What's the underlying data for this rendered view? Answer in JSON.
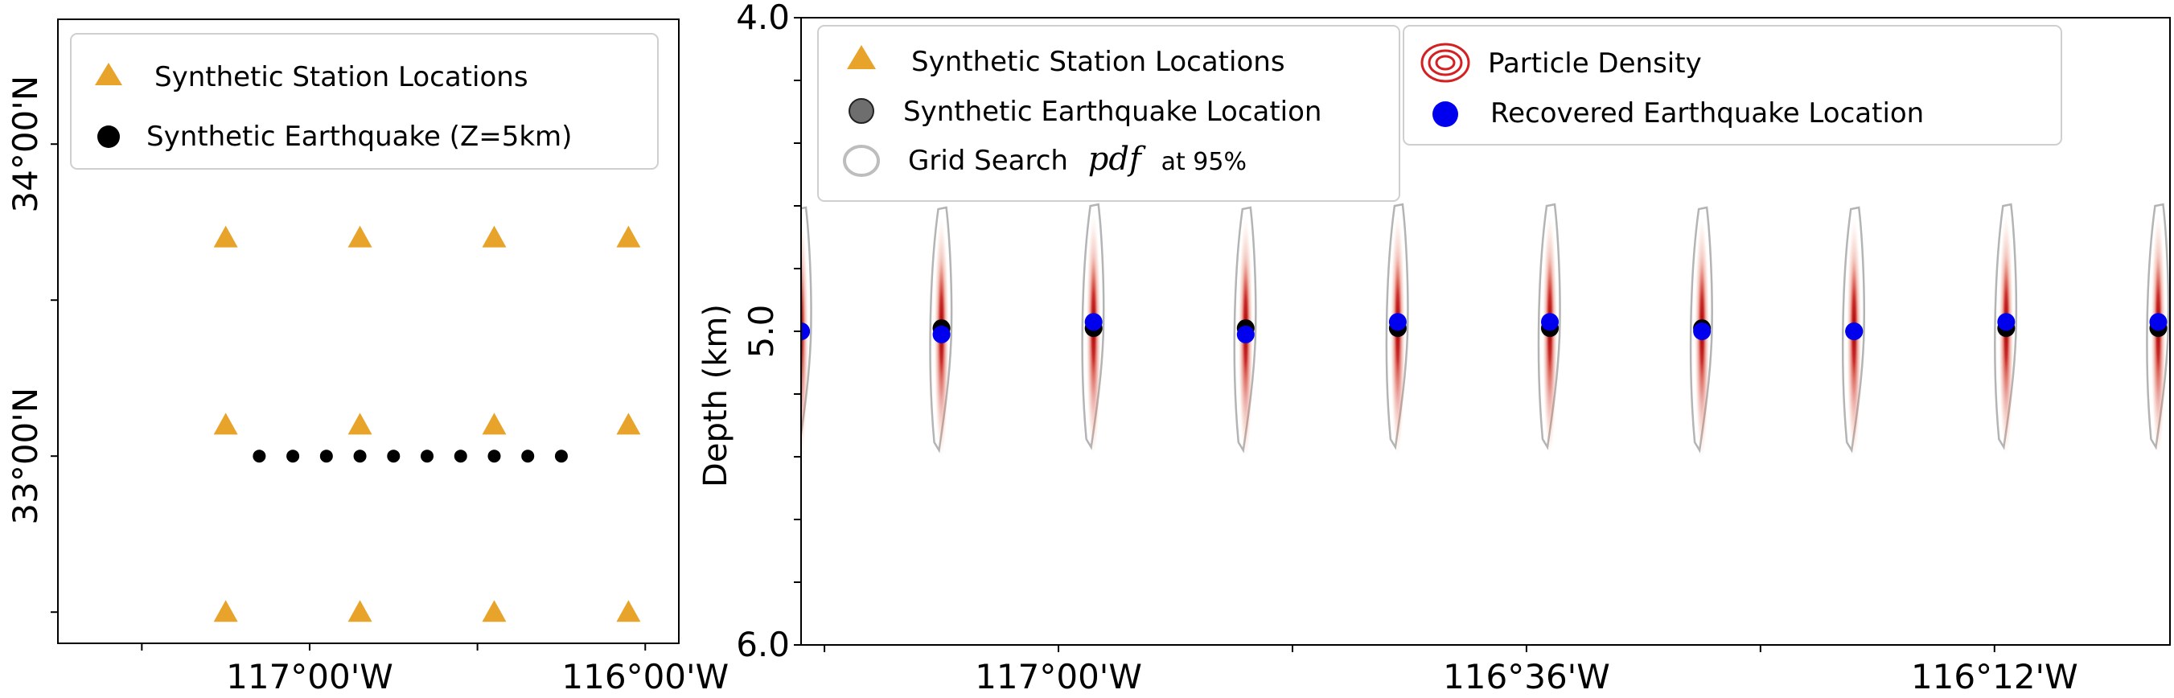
{
  "colors": {
    "station": "#E8A32A",
    "synthetic_eq": "#000000",
    "recovered_eq": "#0000EE",
    "density": "#B00000",
    "grid_pdf": "#B4B4B4",
    "frame": "#000000"
  },
  "chart_data": [
    {
      "type": "scatter",
      "panel": "map",
      "title": "",
      "xlabel": "",
      "ylabel": "",
      "x_ticks": [
        {
          "value": -117.0,
          "label": "117°00'W"
        },
        {
          "value": -116.0,
          "label": "116°00'W"
        }
      ],
      "y_ticks": [
        {
          "value": 33.0,
          "label": "33°00'N"
        },
        {
          "value": 34.0,
          "label": "34°00'N"
        }
      ],
      "xlim": [
        -117.75,
        -115.9
      ],
      "ylim": [
        32.4,
        34.4
      ],
      "series": [
        {
          "name": "Synthetic Station Locations",
          "marker": "triangle",
          "points": [
            {
              "x": -117.25,
              "y": 32.5
            },
            {
              "x": -116.85,
              "y": 32.5
            },
            {
              "x": -116.45,
              "y": 32.5
            },
            {
              "x": -116.05,
              "y": 32.5
            },
            {
              "x": -117.25,
              "y": 33.1
            },
            {
              "x": -116.85,
              "y": 33.1
            },
            {
              "x": -116.45,
              "y": 33.1
            },
            {
              "x": -116.05,
              "y": 33.1
            },
            {
              "x": -117.25,
              "y": 33.7
            },
            {
              "x": -116.85,
              "y": 33.7
            },
            {
              "x": -116.45,
              "y": 33.7
            },
            {
              "x": -116.05,
              "y": 33.7
            }
          ]
        },
        {
          "name": "Synthetic Earthquake (Z=5km)",
          "marker": "circle",
          "points": [
            {
              "x": -117.15,
              "y": 33.0
            },
            {
              "x": -117.05,
              "y": 33.0
            },
            {
              "x": -116.95,
              "y": 33.0
            },
            {
              "x": -116.85,
              "y": 33.0
            },
            {
              "x": -116.75,
              "y": 33.0
            },
            {
              "x": -116.65,
              "y": 33.0
            },
            {
              "x": -116.55,
              "y": 33.0
            },
            {
              "x": -116.45,
              "y": 33.0
            },
            {
              "x": -116.35,
              "y": 33.0
            },
            {
              "x": -116.25,
              "y": 33.0
            }
          ]
        }
      ],
      "legend": {
        "placement": "top"
      }
    },
    {
      "type": "scatter",
      "panel": "depth-section",
      "title": "",
      "xlabel": "",
      "ylabel": "Depth (km)",
      "x_ticks": [
        {
          "value": -117.0,
          "label": "117°00'W"
        },
        {
          "value": -116.6,
          "label": "116°36'W"
        },
        {
          "value": -116.2,
          "label": "116°12'W"
        }
      ],
      "y_ticks": [
        {
          "value": 4.0,
          "label": "4.0"
        },
        {
          "value": 5.0,
          "label": "5.0"
        },
        {
          "value": 6.0,
          "label": "6.0"
        }
      ],
      "xlim": [
        -117.22,
        -116.05
      ],
      "ylim": [
        6.0,
        4.0
      ],
      "y_inverted": true,
      "series": [
        {
          "name": "Synthetic Earthquake Location",
          "marker": "circle",
          "points": [
            {
              "x": -117.22,
              "y": 5.0
            },
            {
              "x": -117.1,
              "y": 4.99
            },
            {
              "x": -116.97,
              "y": 4.99
            },
            {
              "x": -116.84,
              "y": 4.99
            },
            {
              "x": -116.71,
              "y": 4.99
            },
            {
              "x": -116.58,
              "y": 4.99
            },
            {
              "x": -116.45,
              "y": 4.99
            },
            {
              "x": -116.32,
              "y": 5.0
            },
            {
              "x": -116.19,
              "y": 4.99
            },
            {
              "x": -116.06,
              "y": 4.99
            }
          ]
        },
        {
          "name": "Recovered Earthquake Location",
          "marker": "circle",
          "points": [
            {
              "x": -117.22,
              "y": 5.0
            },
            {
              "x": -117.1,
              "y": 5.01
            },
            {
              "x": -116.97,
              "y": 4.97
            },
            {
              "x": -116.84,
              "y": 5.01
            },
            {
              "x": -116.71,
              "y": 4.97
            },
            {
              "x": -116.58,
              "y": 4.97
            },
            {
              "x": -116.45,
              "y": 5.0
            },
            {
              "x": -116.32,
              "y": 5.0
            },
            {
              "x": -116.19,
              "y": 4.97
            },
            {
              "x": -116.06,
              "y": 4.97
            }
          ]
        },
        {
          "name": "Particle Density",
          "marker": "density-ellipse",
          "points": [
            {
              "x": -117.22,
              "y": 5.0
            },
            {
              "x": -117.1,
              "y": 5.0
            },
            {
              "x": -116.97,
              "y": 4.99
            },
            {
              "x": -116.84,
              "y": 5.0
            },
            {
              "x": -116.71,
              "y": 4.99
            },
            {
              "x": -116.58,
              "y": 4.99
            },
            {
              "x": -116.45,
              "y": 5.0
            },
            {
              "x": -116.32,
              "y": 5.0
            },
            {
              "x": -116.19,
              "y": 4.99
            },
            {
              "x": -116.06,
              "y": 4.99
            }
          ]
        },
        {
          "name": "Grid Search pdf at 95%",
          "marker": "contour",
          "points": [
            {
              "x": -117.22,
              "y": 5.0
            },
            {
              "x": -117.1,
              "y": 5.0
            },
            {
              "x": -116.97,
              "y": 4.99
            },
            {
              "x": -116.84,
              "y": 5.0
            },
            {
              "x": -116.71,
              "y": 4.99
            },
            {
              "x": -116.58,
              "y": 4.99
            },
            {
              "x": -116.45,
              "y": 5.0
            },
            {
              "x": -116.32,
              "y": 5.0
            },
            {
              "x": -116.19,
              "y": 4.99
            },
            {
              "x": -116.06,
              "y": 4.99
            }
          ]
        }
      ],
      "legend": {
        "placement": "top",
        "entries_left": [
          "Synthetic Station Locations",
          "Synthetic Earthquake Location",
          "Grid Search pdf at 95%"
        ],
        "entries_right": [
          "Particle Density",
          "Recovered Earthquake Location"
        ]
      }
    }
  ],
  "legend_labels": {
    "map_station": "Synthetic Station Locations",
    "map_eq": "Synthetic Earthquake (Z=5km)",
    "d_station": "Synthetic Station Locations",
    "d_eq": "Synthetic Earthquake Location",
    "d_grid_prefix": "Grid Search",
    "d_grid_pdf": "pdf",
    "d_grid_suffix": "at 95%",
    "d_density": "Particle Density",
    "d_recovered": "Recovered Earthquake Location"
  }
}
